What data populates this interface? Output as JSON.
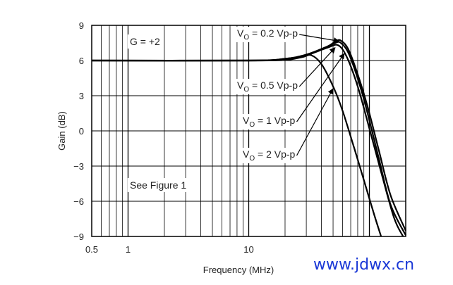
{
  "chart_data": {
    "type": "line",
    "xscale": "log",
    "xlim": [
      0.5,
      200
    ],
    "ylim": [
      -9,
      9
    ],
    "xlabel": "Frequency (MHz)",
    "ylabel": "Gain (dB)",
    "x_ticks": [
      {
        "value": 0.5,
        "label": "0.5"
      },
      {
        "value": 1,
        "label": "1"
      },
      {
        "value": 10,
        "label": "10"
      }
    ],
    "y_ticks": [
      {
        "value": 9,
        "label": "9"
      },
      {
        "value": 6,
        "label": "6"
      },
      {
        "value": 3,
        "label": "3"
      },
      {
        "value": 0,
        "label": "0"
      },
      {
        "value": -3,
        "label": "−3"
      },
      {
        "value": -6,
        "label": "−6"
      },
      {
        "value": -9,
        "label": "−9"
      }
    ],
    "grid": true,
    "series": [
      {
        "name": "VO = 0.2 Vp-p",
        "points": [
          [
            0.5,
            6
          ],
          [
            10,
            6
          ],
          [
            20,
            6.15
          ],
          [
            30,
            6.5
          ],
          [
            45,
            7.2
          ],
          [
            52,
            7.6
          ],
          [
            58,
            7.7
          ],
          [
            68,
            6.8
          ],
          [
            85,
            4.0
          ],
          [
            100,
            1.5
          ],
          [
            120,
            -1.7
          ],
          [
            150,
            -5.5
          ],
          [
            200,
            -8.5
          ]
        ]
      },
      {
        "name": "VO = 0.5 Vp-p",
        "points": [
          [
            0.5,
            6
          ],
          [
            10,
            6
          ],
          [
            20,
            6.15
          ],
          [
            30,
            6.5
          ],
          [
            45,
            7.2
          ],
          [
            52,
            7.5
          ],
          [
            58,
            7.5
          ],
          [
            68,
            6.5
          ],
          [
            85,
            3.6
          ],
          [
            100,
            0.9
          ],
          [
            120,
            -2.4
          ],
          [
            150,
            -6.3
          ],
          [
            200,
            -8.9
          ]
        ]
      },
      {
        "name": "VO = 1 Vp-p",
        "points": [
          [
            0.5,
            6
          ],
          [
            10,
            6
          ],
          [
            20,
            6.1
          ],
          [
            30,
            6.45
          ],
          [
            45,
            7.1
          ],
          [
            55,
            7.3
          ],
          [
            65,
            6.3
          ],
          [
            80,
            3.8
          ],
          [
            100,
            0.2
          ],
          [
            125,
            -3.5
          ],
          [
            160,
            -7.4
          ],
          [
            190,
            -9
          ]
        ]
      },
      {
        "name": "VO = 2 Vp-p",
        "points": [
          [
            0.5,
            6
          ],
          [
            10,
            6
          ],
          [
            20,
            6.05
          ],
          [
            28,
            6.3
          ],
          [
            33,
            6.45
          ],
          [
            40,
            5.7
          ],
          [
            50,
            3.8
          ],
          [
            60,
            1.7
          ],
          [
            75,
            -1.5
          ],
          [
            90,
            -4.2
          ],
          [
            110,
            -7.2
          ],
          [
            125,
            -9
          ]
        ]
      }
    ],
    "annotations": [
      {
        "text": "G = +2"
      },
      {
        "text": "See Figure 1"
      }
    ],
    "curve_labels": [
      {
        "main": "V",
        "sub": "O",
        "rest": " = 0.2 Vp-p",
        "arrow_to": [
          56,
          7.65
        ]
      },
      {
        "main": "V",
        "sub": "O",
        "rest": " = 0.5 Vp-p",
        "arrow_to": [
          52,
          7.1
        ]
      },
      {
        "main": "V",
        "sub": "O",
        "rest": " = 1 Vp-p",
        "arrow_to": [
          62,
          6.6
        ]
      },
      {
        "main": "V",
        "sub": "O",
        "rest": " = 2 Vp-p",
        "arrow_to": [
          50,
          3.6
        ]
      }
    ]
  },
  "watermark": {
    "text": "www.jdwx.cn"
  }
}
